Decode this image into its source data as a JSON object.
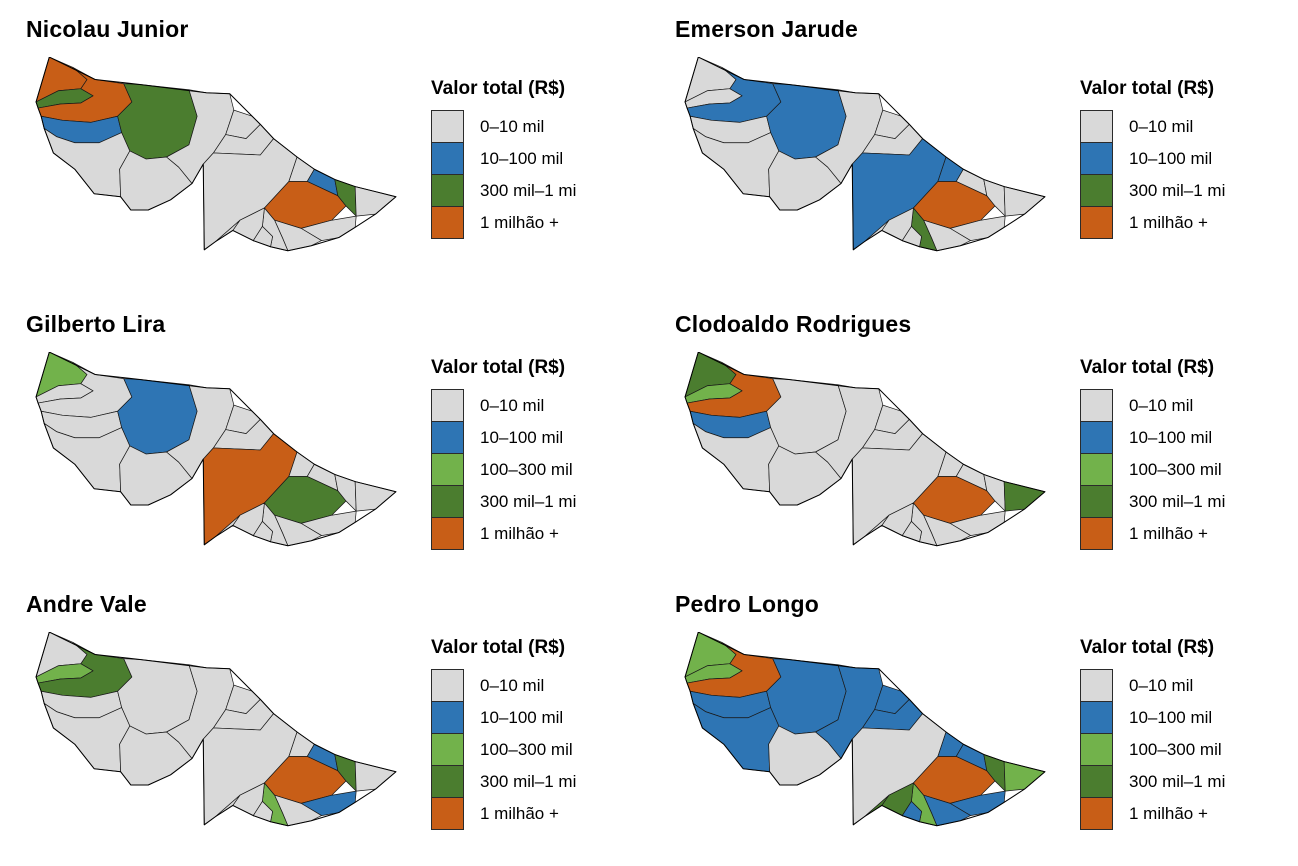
{
  "legend_title": "Valor total (R$)",
  "categories": [
    {
      "id": "c0",
      "label": "0–10 mil",
      "color": "#d9d9d9"
    },
    {
      "id": "c1",
      "label": "10–100 mil",
      "color": "#2e75b4"
    },
    {
      "id": "c2",
      "label": "100–300 mil",
      "color": "#72b24b"
    },
    {
      "id": "c3",
      "label": "300 mil–1 mi",
      "color": "#4b7d2f"
    },
    {
      "id": "c4",
      "label": "1 milhão +",
      "color": "#c85e17"
    }
  ],
  "map_border_color": "#1a1a1a",
  "panels": [
    {
      "title": "Nicolau Junior",
      "legend": [
        "c0",
        "c1",
        "c3",
        "c4"
      ],
      "regions": {
        "ml": "c4",
        "cds": "c4",
        "ra": "c3",
        "pw": "c1",
        "ta": "c3",
        "pa": "c1",
        "rb": "c4",
        "pc": "c3"
      }
    },
    {
      "title": "Emerson Jarude",
      "legend": [
        "c0",
        "c1",
        "c3",
        "c4"
      ],
      "regions": {
        "cds": "c1",
        "ta": "c1",
        "sm": "c1",
        "bu": "c1",
        "rb": "c4",
        "xa": "c3"
      }
    },
    {
      "title": "Gilberto Lira",
      "legend": [
        "c0",
        "c1",
        "c2",
        "c3",
        "c4"
      ],
      "regions": {
        "ml": "c2",
        "ta": "c1",
        "sm": "c4",
        "rb": "c3"
      }
    },
    {
      "title": "Clodoaldo Rodrigues",
      "legend": [
        "c0",
        "c1",
        "c2",
        "c3",
        "c4"
      ],
      "regions": {
        "ml": "c3",
        "ra": "c2",
        "cds": "c4",
        "pw": "c1",
        "rb": "c4",
        "ac": "c3"
      }
    },
    {
      "title": "Andre Vale",
      "legend": [
        "c0",
        "c1",
        "c2",
        "c3",
        "c4"
      ],
      "regions": {
        "ra": "c2",
        "cds": "c3",
        "pa": "c1",
        "rb": "c4",
        "pc": "c3",
        "sg": "c1",
        "xa": "c2"
      }
    },
    {
      "title": "Pedro Longo",
      "legend": [
        "c0",
        "c1",
        "c2",
        "c3",
        "c4"
      ],
      "regions": {
        "ml": "c2",
        "ra": "c2",
        "cds": "c4",
        "pw": "c1",
        "mt": "c1",
        "ta": "c1",
        "jo": "c0",
        "fe": "c1",
        "sr": "c1",
        "mu": "c1",
        "sm": "c0",
        "bu": "c1",
        "pa": "c1",
        "rb": "c4",
        "pc": "c3",
        "ac": "c2",
        "sg": "c1",
        "cap": "c1",
        "ep": "c1",
        "xa": "c2",
        "br": "c3",
        "ab": "c3"
      }
    }
  ]
}
